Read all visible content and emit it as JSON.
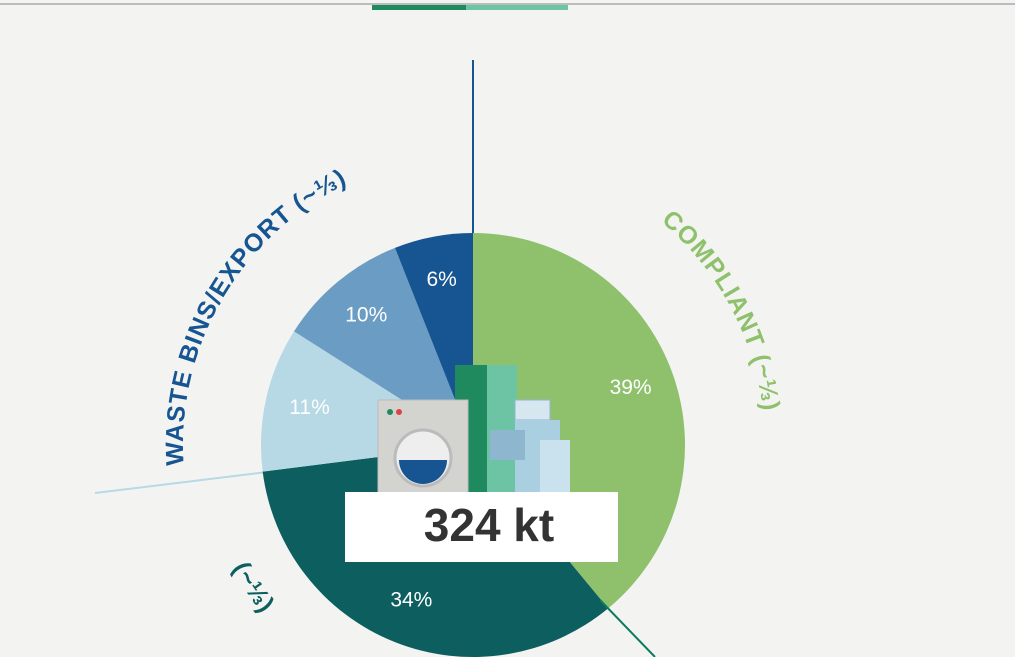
{
  "chart_data": {
    "type": "pie",
    "values": [
      39,
      34,
      11,
      10,
      6
    ],
    "value_labels": [
      "39%",
      "34%",
      "11%",
      "10%",
      "6%"
    ],
    "colors": [
      "#8fc16c",
      "#0d5f5f",
      "#b6d9e5",
      "#6b9dc4",
      "#165592"
    ],
    "center_label": "324 kt",
    "annotations": [
      {
        "text": "COMPLIANT (~⅓)",
        "color": "#8fc16c"
      },
      {
        "text": "WASTE BINS/EXPORT (~⅓)",
        "color": "#165592"
      },
      {
        "text": "(~⅓)",
        "color": "#0d5f5f"
      }
    ]
  }
}
